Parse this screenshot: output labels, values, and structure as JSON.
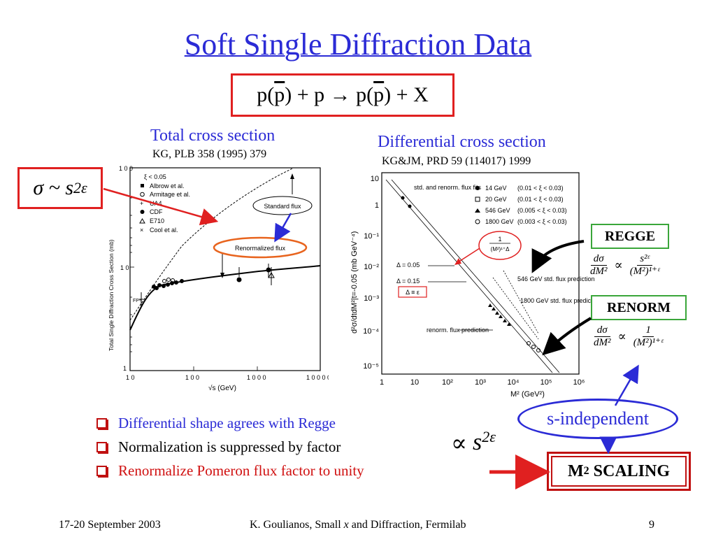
{
  "title": "Soft Single Diffraction Data",
  "reaction": {
    "part1": "p(",
    "pbar": "p",
    "part2": ") + p → p(",
    "part3": ") + X"
  },
  "left_plot": {
    "caption": "Total cross section",
    "ref": "KG, PLB 358 (1995) 379",
    "ylabel": "Total Single Diffraction Cross Section (mb)",
    "xlabel": "√s (GeV)",
    "yticks": [
      "1 0 0",
      "1 0",
      "1"
    ],
    "xticks": [
      "1 0",
      "1 0 0",
      "1 0 0 0",
      "1 0 0 0 0"
    ],
    "legend": [
      "ξ  < 0.05",
      "Albrow et al.",
      "Armitage et al.",
      "UA4",
      "CDF",
      "E710",
      "Cool et al."
    ],
    "standard_flux": "Standard flux",
    "renormalized_flux": "Renormalized flux",
    "fp_label": "FP⁸"
  },
  "right_plot": {
    "caption": "Differential cross section",
    "ref": "KG&JM, PRD 59 (114017) 1999",
    "ylabel": "d²σ/dtdM²|t=-0.05 (mb GeV⁻⁴)",
    "xlabel": "M² (GeV²)",
    "yticks": [
      "10",
      "1",
      "10⁻¹",
      "10⁻²",
      "10⁻³",
      "10⁻⁴",
      "10⁻⁵"
    ],
    "xticks": [
      "1",
      "10",
      "10²",
      "10³",
      "10⁴",
      "10⁵",
      "10⁶"
    ],
    "legend": [
      {
        "energy": "14  GeV",
        "range": "(0.01 < ξ < 0.03)"
      },
      {
        "energy": "20  GeV",
        "range": "(0.01 < ξ < 0.03)"
      },
      {
        "energy": "546 GeV",
        "range": "(0.005 < ξ < 0.03)"
      },
      {
        "energy": "1800 GeV",
        "range": "(0.003 < ξ < 0.03)"
      }
    ],
    "std_fits": "std. and renorm. flux fits",
    "delta1": "Δ = 0.05",
    "delta2": "Δ = 0.15",
    "delta_eq": "Δ ≡ ε",
    "pred546": "546 GeV  std. flux prediction",
    "pred1800": "1800 GeV std. flux prediction",
    "renorm_pred": "renorm. flux prediction",
    "inset_num": "1",
    "inset_den": "(M²)¹⁺Δ"
  },
  "sigma_formula": "σ ~ s",
  "sigma_exp": "2ε",
  "regge": {
    "label": "REGGE",
    "num_l": "dσ",
    "den_l": "dM²",
    "prop": "∝",
    "num_r": "s²ᵋ",
    "den_r": "(M²)¹⁺ᵋ"
  },
  "renorm": {
    "label": "RENORM",
    "num_l": "dσ",
    "den_l": "dM²",
    "prop": "∝",
    "num_r": "1",
    "den_r": "(M²)¹⁺ᵋ"
  },
  "s_independent": "s-independent",
  "m2_scaling": {
    "m": "M",
    "sup": "2",
    "text": " SCALING"
  },
  "bullets": [
    {
      "text": "Differential shape agrees with Regge",
      "color": "#2b2bd6"
    },
    {
      "text": "Normalization is suppressed by factor",
      "color": "#000000"
    },
    {
      "text": "Renormalize Pomeron flux factor to unity",
      "color": "#d01010"
    }
  ],
  "suppression": {
    "prop": "∝",
    "s": "s",
    "exp": "2ε"
  },
  "footer": {
    "date": "17-20 September 2003",
    "author_pre": "K. Goulianos, Small ",
    "author_x": "x",
    "author_post": " and Diffraction, Fermilab",
    "page": "9"
  },
  "colors": {
    "title": "#2b2bd6",
    "box_red": "#e02020",
    "green": "#3aa63a",
    "arrow_blue": "#2b2bd6"
  }
}
